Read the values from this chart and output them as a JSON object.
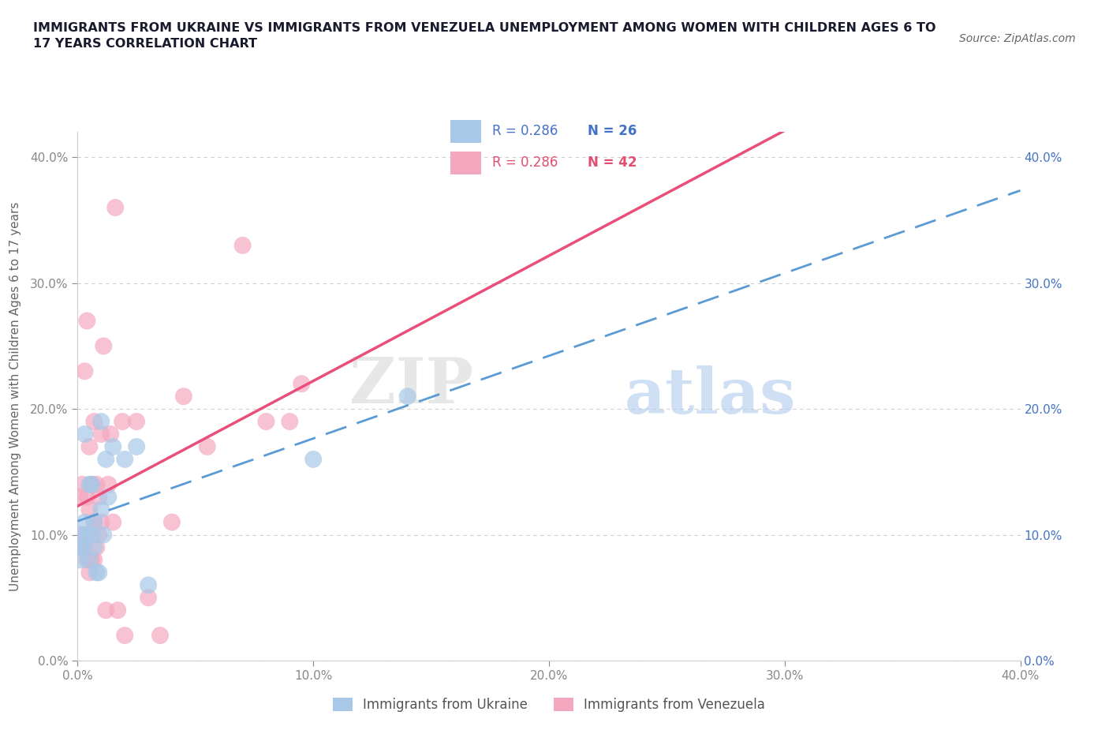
{
  "title": "IMMIGRANTS FROM UKRAINE VS IMMIGRANTS FROM VENEZUELA UNEMPLOYMENT AMONG WOMEN WITH CHILDREN AGES 6 TO\n17 YEARS CORRELATION CHART",
  "source": "Source: ZipAtlas.com",
  "ylabel": "Unemployment Among Women with Children Ages 6 to 17 years",
  "xlim": [
    0.0,
    0.4
  ],
  "ylim": [
    0.0,
    0.42
  ],
  "xticks": [
    0.0,
    0.1,
    0.2,
    0.3,
    0.4
  ],
  "yticks": [
    0.0,
    0.1,
    0.2,
    0.3,
    0.4
  ],
  "ukraine_color": "#a8c8e8",
  "venezuela_color": "#f4a8c0",
  "ukraine_line_color": "#5b9bd5",
  "venezuela_line_color": "#e8507a",
  "R_ukraine": 0.286,
  "N_ukraine": 26,
  "R_venezuela": 0.286,
  "N_venezuela": 42,
  "ukraine_x": [
    0.001,
    0.001,
    0.001,
    0.002,
    0.003,
    0.003,
    0.004,
    0.005,
    0.005,
    0.006,
    0.006,
    0.007,
    0.007,
    0.008,
    0.009,
    0.01,
    0.01,
    0.011,
    0.012,
    0.013,
    0.015,
    0.02,
    0.025,
    0.03,
    0.1,
    0.14
  ],
  "ukraine_y": [
    0.08,
    0.09,
    0.1,
    0.09,
    0.11,
    0.18,
    0.1,
    0.08,
    0.14,
    0.1,
    0.14,
    0.09,
    0.11,
    0.07,
    0.07,
    0.19,
    0.12,
    0.1,
    0.16,
    0.13,
    0.17,
    0.16,
    0.17,
    0.06,
    0.16,
    0.21
  ],
  "venezuela_x": [
    0.001,
    0.001,
    0.002,
    0.002,
    0.003,
    0.003,
    0.004,
    0.004,
    0.004,
    0.005,
    0.005,
    0.005,
    0.006,
    0.006,
    0.007,
    0.007,
    0.007,
    0.008,
    0.008,
    0.009,
    0.009,
    0.01,
    0.01,
    0.011,
    0.012,
    0.013,
    0.014,
    0.015,
    0.016,
    0.017,
    0.019,
    0.02,
    0.025,
    0.03,
    0.035,
    0.04,
    0.045,
    0.055,
    0.07,
    0.08,
    0.09,
    0.095
  ],
  "venezuela_y": [
    0.09,
    0.13,
    0.1,
    0.14,
    0.09,
    0.23,
    0.27,
    0.08,
    0.13,
    0.07,
    0.12,
    0.17,
    0.08,
    0.14,
    0.08,
    0.11,
    0.19,
    0.09,
    0.14,
    0.1,
    0.13,
    0.11,
    0.18,
    0.25,
    0.04,
    0.14,
    0.18,
    0.11,
    0.36,
    0.04,
    0.19,
    0.02,
    0.19,
    0.05,
    0.02,
    0.11,
    0.21,
    0.17,
    0.33,
    0.19,
    0.19,
    0.22
  ],
  "watermark_zip": "ZIP",
  "watermark_atlas": "atlas",
  "background_color": "#ffffff",
  "grid_color": "#d0d0d0",
  "right_axis_color": "#4472c4",
  "legend_text_ukraine_color": "#4472c4",
  "legend_text_venezuela_color": "#e05070",
  "title_color": "#1a1a2e",
  "axis_label_color": "#666666",
  "tick_color": "#888888"
}
